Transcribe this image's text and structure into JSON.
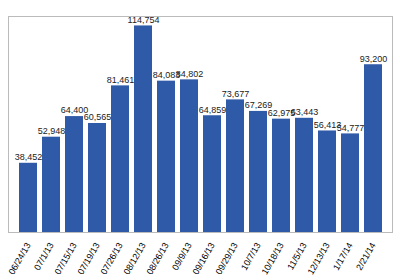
{
  "chart_data": {
    "type": "bar",
    "categories": [
      "06/24/13",
      "07/1/13",
      "07/15/13",
      "07/19/13",
      "07/26/13",
      "08/12/13",
      "08/26/13",
      "09/9/13",
      "09/16/13",
      "09/29/13",
      "10/7/13",
      "10/18/13",
      "11/5/13",
      "12/13/13",
      "1/17/14",
      "2/21/14"
    ],
    "values": [
      38452,
      52948,
      64400,
      60565,
      81461,
      114754,
      84083,
      84802,
      64859,
      73677,
      67269,
      62975,
      63443,
      56413,
      54777,
      93200
    ],
    "value_labels": [
      "38,452",
      "52,948",
      "64,400",
      "60,565",
      "81,461",
      "114,754",
      "84,083",
      "84,802",
      "64,859",
      "73,677",
      "67,269",
      "62,975",
      "63,443",
      "56,413",
      "54,777",
      "93,200"
    ],
    "color": "#2f5aa8",
    "ylim": [
      0,
      120000
    ],
    "grid": false,
    "data_labels": true,
    "tick_labels": "x"
  }
}
